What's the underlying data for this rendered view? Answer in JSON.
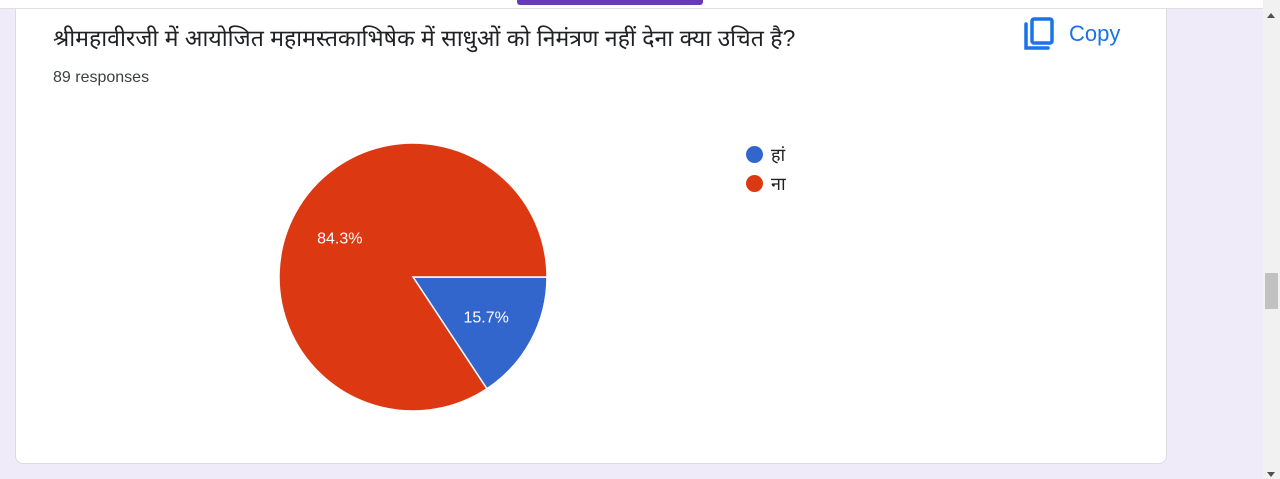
{
  "question": {
    "title": "श्रीमहावीरजी में आयोजित महामस्तकाभिषेक में साधुओं को निमंत्रण नहीं देना क्या उचित है?",
    "responses": "89 responses",
    "copy_label": "Copy",
    "copy_icon": "copy-icon"
  },
  "chart_data": {
    "type": "pie",
    "categories": [
      "हां",
      "ना"
    ],
    "values": [
      15.7,
      84.3
    ],
    "labels": [
      "15.7%",
      "84.3%"
    ],
    "colors": [
      "#3366cc",
      "#dc3912"
    ],
    "legend_position": "right"
  }
}
